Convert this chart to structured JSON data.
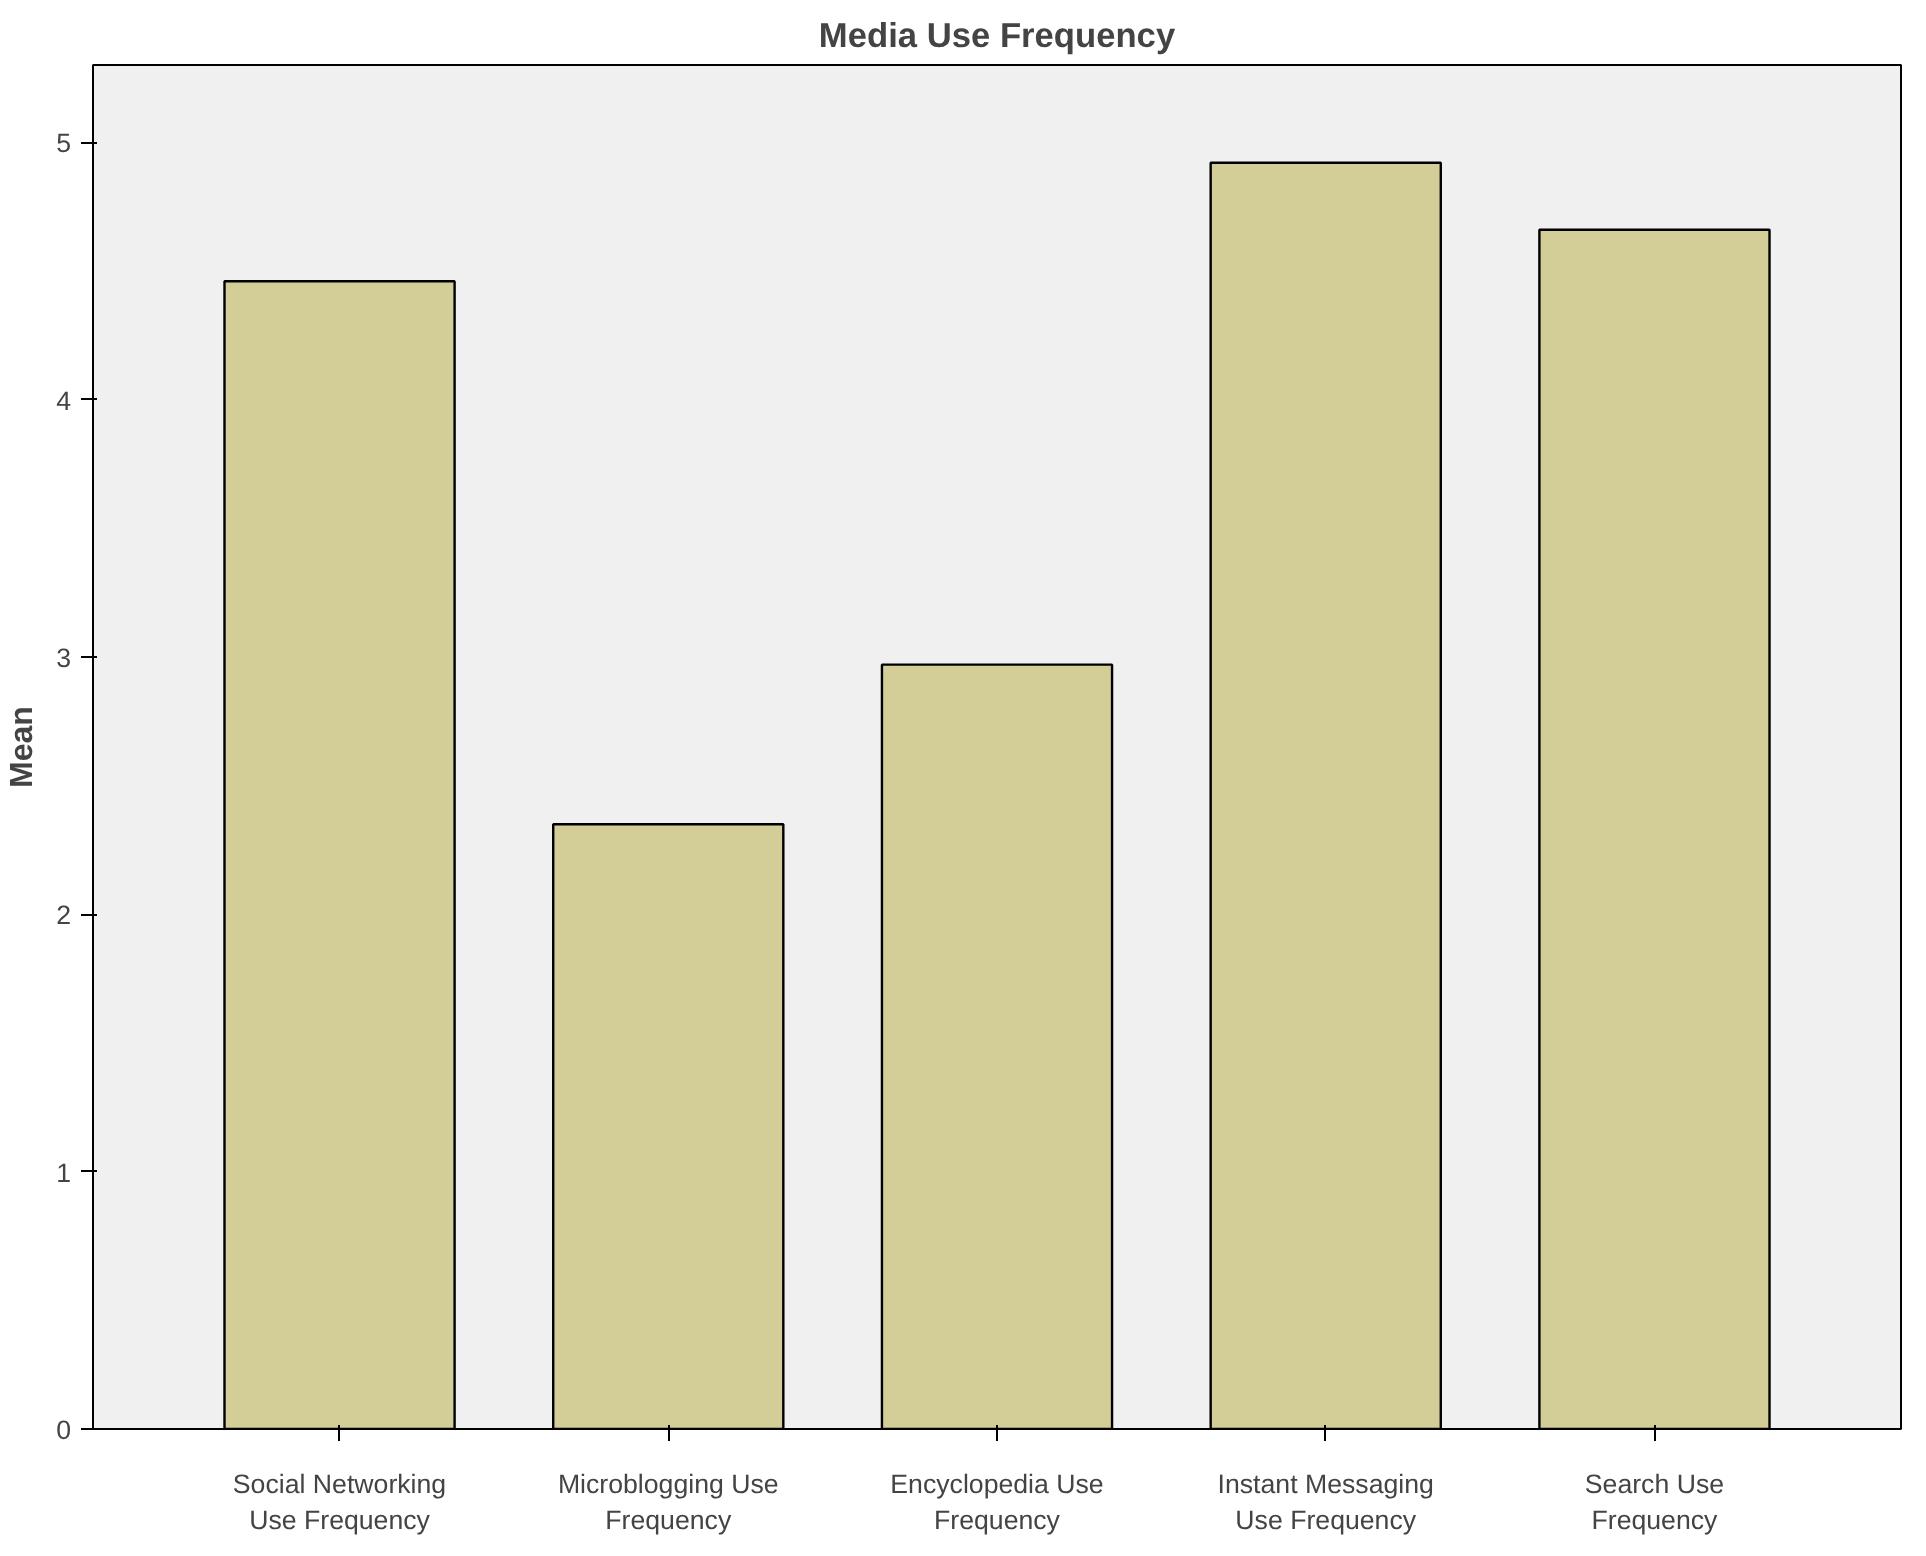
{
  "chart_data": {
    "type": "bar",
    "title": "Media Use Frequency",
    "ylabel": "Mean",
    "categories": [
      "Social Networking Use Frequency",
      "Microblogging Use Frequency",
      "Encyclopedia Use Frequency",
      "Instant Messaging Use Frequency",
      "Search Use Frequency"
    ],
    "values": [
      4.46,
      2.35,
      2.97,
      4.92,
      4.66
    ],
    "color": "#d3ce97",
    "ylim": [
      0,
      5.3
    ],
    "yticks": [
      0,
      1,
      2,
      3,
      4,
      5
    ],
    "grid": false,
    "legend": false
  }
}
